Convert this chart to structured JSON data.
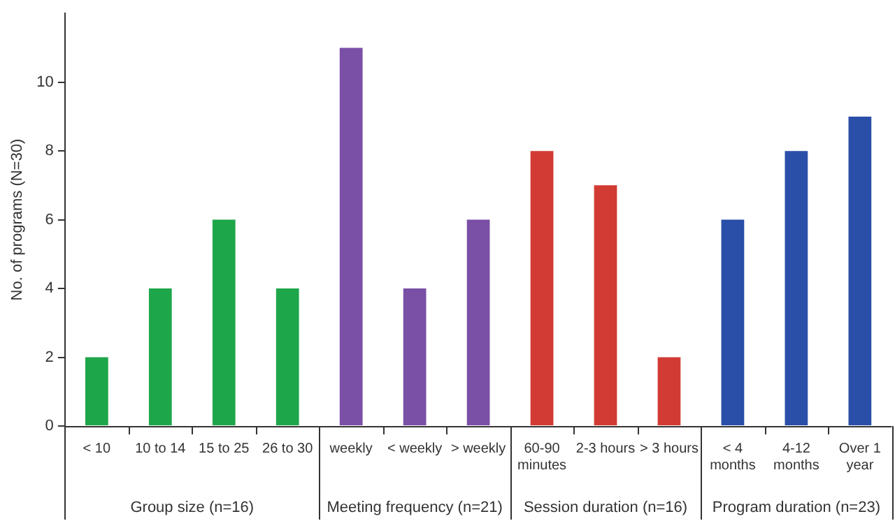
{
  "chart_data": {
    "type": "bar",
    "ylabel": "No. of programs (N=30)",
    "categories": [
      "< 10",
      "10 to 14",
      "15 to 25",
      "26 to 30",
      "weekly",
      "< weekly",
      "> weekly",
      "60-90 minutes",
      "2-3 hours",
      "> 3 hours",
      "< 4 months",
      "4-12 months",
      "Over 1 year"
    ],
    "values": [
      2,
      4,
      6,
      4,
      11,
      4,
      6,
      8,
      7,
      2,
      6,
      8,
      9
    ],
    "colors": [
      "#1ea64b",
      "#1ea64b",
      "#1ea64b",
      "#1ea64b",
      "#7a4fa6",
      "#7a4fa6",
      "#7a4fa6",
      "#d23b33",
      "#d23b33",
      "#d23b33",
      "#2a4fa8",
      "#2a4fa8",
      "#2a4fa8"
    ],
    "ylim": [
      0,
      12
    ],
    "yticks": [
      0,
      2,
      4,
      6,
      8,
      10
    ],
    "grid": false,
    "legend": false,
    "annotations": [
      "Group size (n=16)",
      "Meeting frequency (n=21)",
      "Session duration (n=16)",
      "Program duration (n=23)"
    ]
  }
}
